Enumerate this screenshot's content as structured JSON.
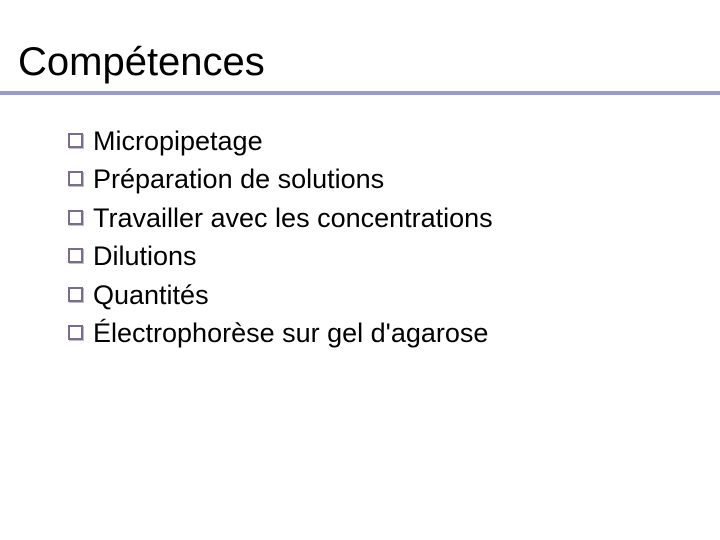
{
  "slide": {
    "heading": "Compétences",
    "heading_color": "#000000",
    "heading_fontsize": 40,
    "underline_color": "#9999cc",
    "underline_thickness": 4,
    "bullet_color": "#7a6b8f",
    "bullet_size": 15,
    "item_fontsize": 27,
    "item_color": "#000000",
    "background_color": "#ffffff",
    "items": [
      {
        "text": "Micropipetage"
      },
      {
        "text": "Préparation de solutions"
      },
      {
        "text": "Travailler avec les concentrations"
      },
      {
        "text": "Dilutions"
      },
      {
        "text": "Quantités"
      },
      {
        "text": "Électrophorèse sur gel d'agarose"
      }
    ]
  }
}
